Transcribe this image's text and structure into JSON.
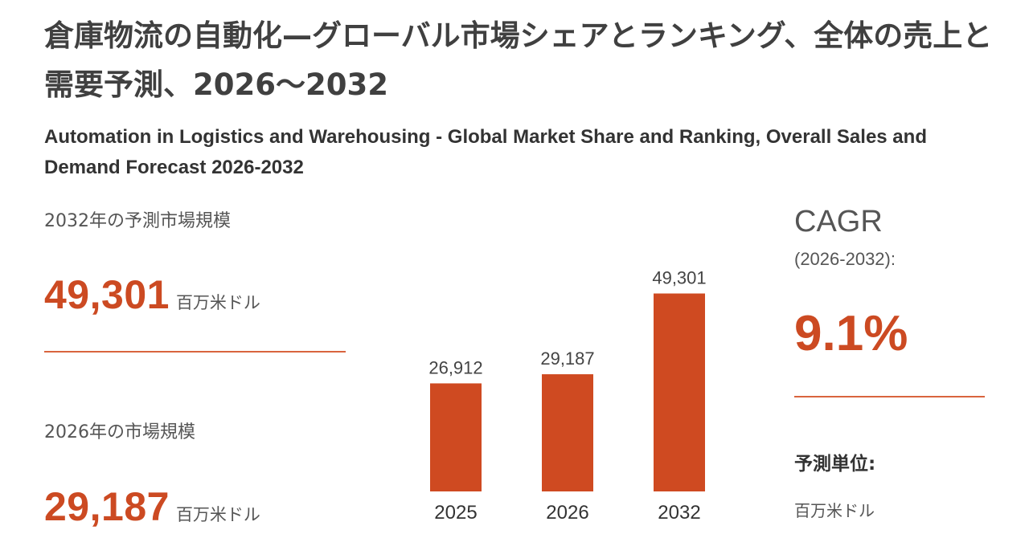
{
  "title_ja": "倉庫物流の自動化—グローバル市場シェアとランキング、全体の売上と需要予測、2026～2032",
  "title_en": "Automation in Logistics and Warehousing - Global Market Share and Ranking, Overall Sales and Demand Forecast 2026-2032",
  "stat_2032": {
    "label": "2032年の予測市場規模",
    "value": "49,301",
    "unit": "百万米ドル"
  },
  "stat_2026": {
    "label": "2026年の市場規模",
    "value": "29,187",
    "unit": "百万米ドル"
  },
  "cagr": {
    "title": "CAGR",
    "range": "(2026-2032):",
    "value": "9.1%"
  },
  "forecast_unit": {
    "heading": "予測単位:",
    "value": "百万米ドル"
  },
  "colors": {
    "accent": "#cc4a22",
    "bar": "#cf4a21",
    "text": "#3a3a3a"
  },
  "chart_data": {
    "type": "bar",
    "categories": [
      "2025",
      "2026",
      "2032"
    ],
    "values": [
      26912,
      29187,
      49301
    ],
    "value_labels": [
      "26,912",
      "29,187",
      "49,301"
    ],
    "title": "",
    "xlabel": "",
    "ylabel": "",
    "ylim": [
      0,
      52000
    ],
    "grid": false,
    "legend": "none"
  }
}
